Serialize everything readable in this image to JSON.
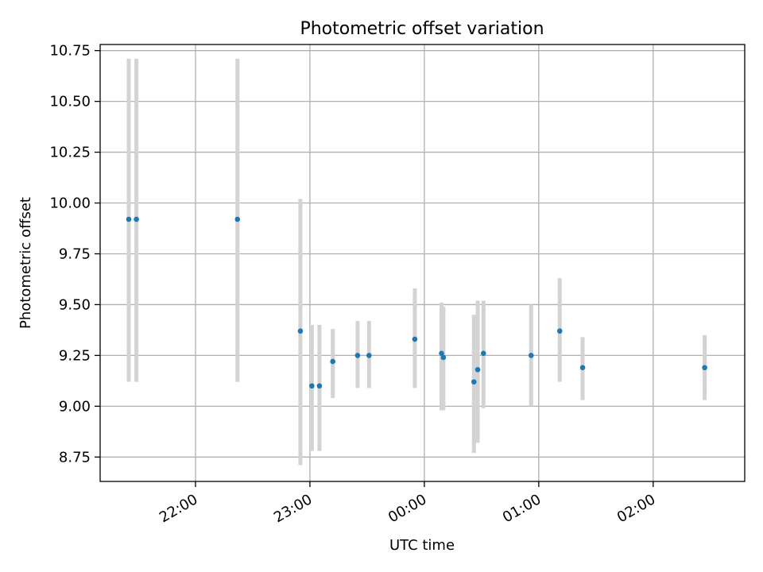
{
  "chart_data": {
    "type": "scatter",
    "title": "Photometric offset variation",
    "xlabel": "UTC time",
    "ylabel": "Photometric offset",
    "xlim": [
      "21:10",
      "02:48"
    ],
    "ylim": [
      8.63,
      10.78
    ],
    "x_tick_labels": [
      "22:00",
      "23:00",
      "00:00",
      "01:00",
      "02:00"
    ],
    "y_tick_labels": [
      "8.75",
      "9.00",
      "9.25",
      "9.50",
      "9.75",
      "10.00",
      "10.25",
      "10.50",
      "10.75"
    ],
    "grid": true,
    "colors": {
      "points": "#1f77b4",
      "errorbars": "#d3d3d3",
      "grid": "#b0b0b0"
    },
    "points": [
      {
        "time": "21:25",
        "y": 9.92,
        "err_low": 9.12,
        "err_high": 10.71
      },
      {
        "time": "21:29",
        "y": 9.92,
        "err_low": 9.12,
        "err_high": 10.71
      },
      {
        "time": "22:22",
        "y": 9.92,
        "err_low": 9.12,
        "err_high": 10.71
      },
      {
        "time": "22:55",
        "y": 9.37,
        "err_low": 8.71,
        "err_high": 10.02
      },
      {
        "time": "23:01",
        "y": 9.1,
        "err_low": 8.78,
        "err_high": 9.4
      },
      {
        "time": "23:05",
        "y": 9.1,
        "err_low": 8.78,
        "err_high": 9.4
      },
      {
        "time": "23:12",
        "y": 9.22,
        "err_low": 9.04,
        "err_high": 9.38
      },
      {
        "time": "23:25",
        "y": 9.25,
        "err_low": 9.09,
        "err_high": 9.42
      },
      {
        "time": "23:31",
        "y": 9.25,
        "err_low": 9.09,
        "err_high": 9.42
      },
      {
        "time": "23:55",
        "y": 9.33,
        "err_low": 9.09,
        "err_high": 9.58
      },
      {
        "time": "00:09",
        "y": 9.26,
        "err_low": 8.98,
        "err_high": 9.51
      },
      {
        "time": "00:10",
        "y": 9.24,
        "err_low": 8.98,
        "err_high": 9.49
      },
      {
        "time": "00:26",
        "y": 9.12,
        "err_low": 8.77,
        "err_high": 9.45
      },
      {
        "time": "00:28",
        "y": 9.18,
        "err_low": 8.82,
        "err_high": 9.52
      },
      {
        "time": "00:31",
        "y": 9.26,
        "err_low": 8.99,
        "err_high": 9.52
      },
      {
        "time": "00:56",
        "y": 9.25,
        "err_low": 9.0,
        "err_high": 9.5
      },
      {
        "time": "01:11",
        "y": 9.37,
        "err_low": 9.12,
        "err_high": 9.63
      },
      {
        "time": "01:23",
        "y": 9.19,
        "err_low": 9.03,
        "err_high": 9.34
      },
      {
        "time": "02:27",
        "y": 9.19,
        "err_low": 9.03,
        "err_high": 9.35
      }
    ]
  }
}
